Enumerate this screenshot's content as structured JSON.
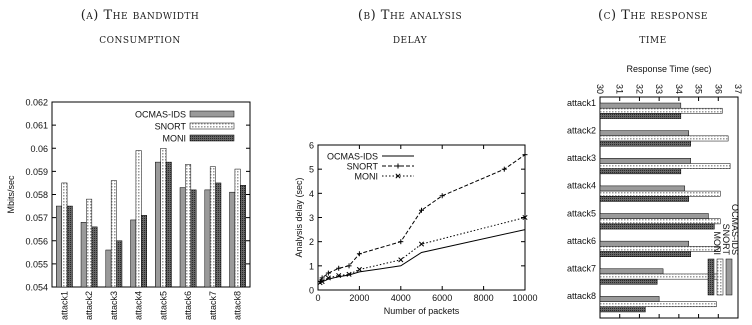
{
  "captions": [
    {
      "line1": "(a) The bandwidth",
      "line2": "consumption"
    },
    {
      "line1": "(b) The analysis",
      "line2": "delay"
    },
    {
      "line1": "(c) The response",
      "line2": "time"
    }
  ],
  "chart_data": [
    {
      "type": "bar",
      "title": "",
      "xlabel": "",
      "ylabel": "Mbits/sec",
      "ylim": [
        0.054,
        0.062
      ],
      "yticks": [
        "0.054",
        "0.055",
        "0.056",
        "0.057",
        "0.058",
        "0.059",
        "0.06",
        "0.061",
        "0.062"
      ],
      "categories": [
        "attack1",
        "attack2",
        "attack3",
        "attack4",
        "attack5",
        "attack6",
        "attack7",
        "attack8"
      ],
      "series": [
        {
          "name": "OCMAS-IDS",
          "values": [
            0.0575,
            0.0568,
            0.0556,
            0.0569,
            0.0594,
            0.0583,
            0.0582,
            0.0581
          ]
        },
        {
          "name": "SNORT",
          "values": [
            0.0585,
            0.0578,
            0.0586,
            0.0599,
            0.06,
            0.0593,
            0.0592,
            0.0591
          ]
        },
        {
          "name": "MONI",
          "values": [
            0.0575,
            0.0566,
            0.056,
            0.0571,
            0.0594,
            0.0582,
            0.0585,
            0.0584
          ]
        }
      ],
      "legend": "top-right"
    },
    {
      "type": "line",
      "title": "",
      "xlabel": "Number of packets",
      "ylabel": "Analysis delay (sec)",
      "xlim": [
        0,
        10000
      ],
      "ylim": [
        0,
        6
      ],
      "xticks": [
        "0",
        "2000",
        "4000",
        "6000",
        "8000",
        "10000"
      ],
      "yticks": [
        "0",
        "1",
        "2",
        "3",
        "4",
        "5",
        "6"
      ],
      "series": [
        {
          "name": "OCMAS-IDS",
          "x": [
            100,
            500,
            1000,
            1500,
            2000,
            4000,
            5000,
            10000
          ],
          "y": [
            0.3,
            0.45,
            0.55,
            0.62,
            0.75,
            1.0,
            1.55,
            2.5
          ]
        },
        {
          "name": "SNORT",
          "x": [
            100,
            200,
            500,
            1000,
            1500,
            2000,
            4000,
            5000,
            6000,
            9000,
            10000
          ],
          "y": [
            0.35,
            0.5,
            0.7,
            0.9,
            1.0,
            1.5,
            2.0,
            3.3,
            3.9,
            5.0,
            5.6
          ]
        },
        {
          "name": "MONI",
          "x": [
            100,
            200,
            500,
            1000,
            1500,
            2000,
            4000,
            5000,
            10000
          ],
          "y": [
            0.3,
            0.35,
            0.5,
            0.6,
            0.65,
            0.85,
            1.25,
            1.9,
            3.0
          ]
        }
      ],
      "legend": "top-left"
    },
    {
      "type": "bar",
      "orientation": "horizontal",
      "title": "Response Time (sec)",
      "xlim": [
        30,
        37
      ],
      "xticks": [
        "30",
        "31",
        "32",
        "33",
        "34",
        "35",
        "36",
        "37"
      ],
      "categories": [
        "attack1",
        "attack2",
        "attack3",
        "attack4",
        "attack5",
        "attack6",
        "attack7",
        "attack8"
      ],
      "series": [
        {
          "name": "OCMAS-IDS",
          "values": [
            34.1,
            34.5,
            34.6,
            34.3,
            35.5,
            34.5,
            33.2,
            33.0
          ]
        },
        {
          "name": "SNORT",
          "values": [
            36.2,
            36.5,
            36.6,
            36.1,
            36.1,
            36.1,
            36.0,
            35.9
          ]
        },
        {
          "name": "MONI",
          "values": [
            34.1,
            34.6,
            34.1,
            34.5,
            35.8,
            34.6,
            32.9,
            32.3
          ]
        }
      ],
      "legend": "right (rotated)"
    }
  ]
}
